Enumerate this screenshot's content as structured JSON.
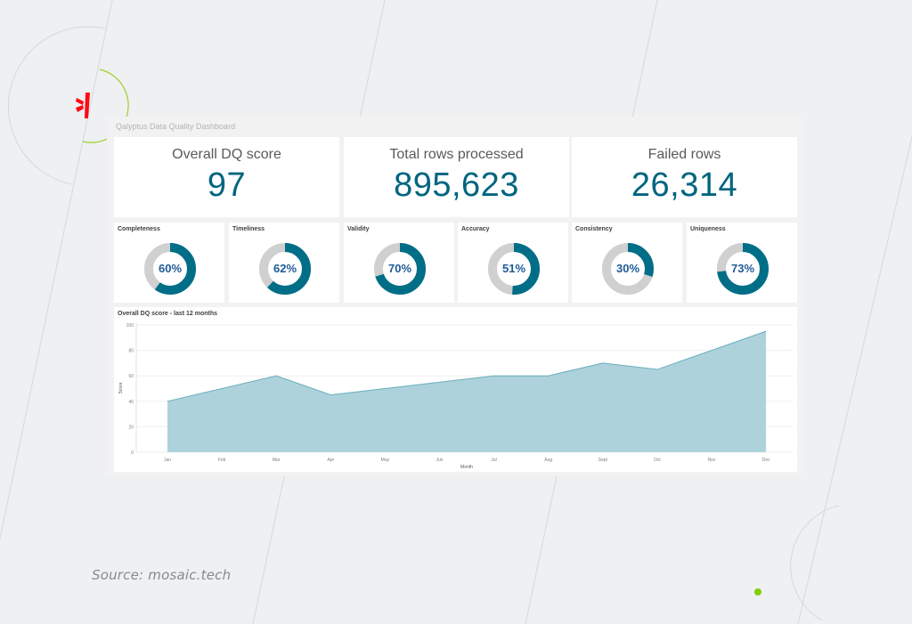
{
  "dashboard": {
    "title": "Qalyptus Data Quality Dashboard"
  },
  "kpis": [
    {
      "label": "Overall DQ score",
      "value": "97"
    },
    {
      "label": "Total rows processed",
      "value": "895,623"
    },
    {
      "label": "Failed rows",
      "value": "26,314"
    }
  ],
  "gauges": [
    {
      "label": "Completeness",
      "value": "60%",
      "percent": 60
    },
    {
      "label": "Timeliness",
      "value": "62%",
      "percent": 62
    },
    {
      "label": "Validity",
      "value": "70%",
      "percent": 70
    },
    {
      "label": "Accuracy",
      "value": "51%",
      "percent": 51
    },
    {
      "label": "Consistency",
      "value": "30%",
      "percent": 30
    },
    {
      "label": "Uniqueness",
      "value": "73%",
      "percent": 73
    }
  ],
  "colors": {
    "accent": "#006580",
    "gauge_fill": "#006e87",
    "gauge_track": "#d0d0d0",
    "gauge_text": "#1f5a96",
    "area_fill": "#a9d0d9",
    "area_line": "#6aaebd",
    "logo_red": "#ff0a14",
    "decor_green": "#8fd400"
  },
  "chart_data": {
    "type": "area",
    "title": "Overall DQ score - last 12 months",
    "xlabel": "Month",
    "ylabel": "Score",
    "categories": [
      "Jan",
      "Feb",
      "Mar",
      "Apr",
      "May",
      "Jun",
      "Jul",
      "Aug",
      "Sept",
      "Oct",
      "Nov",
      "Dec"
    ],
    "values": [
      40,
      50,
      60,
      45,
      50,
      55,
      60,
      60,
      70,
      65,
      80,
      95
    ],
    "yticks": [
      "0",
      "20",
      "40",
      "60",
      "80",
      "100"
    ],
    "ylim": [
      0,
      100
    ],
    "grid": true,
    "legend": "none"
  },
  "footer": {
    "source": "Source: mosaic.tech"
  }
}
